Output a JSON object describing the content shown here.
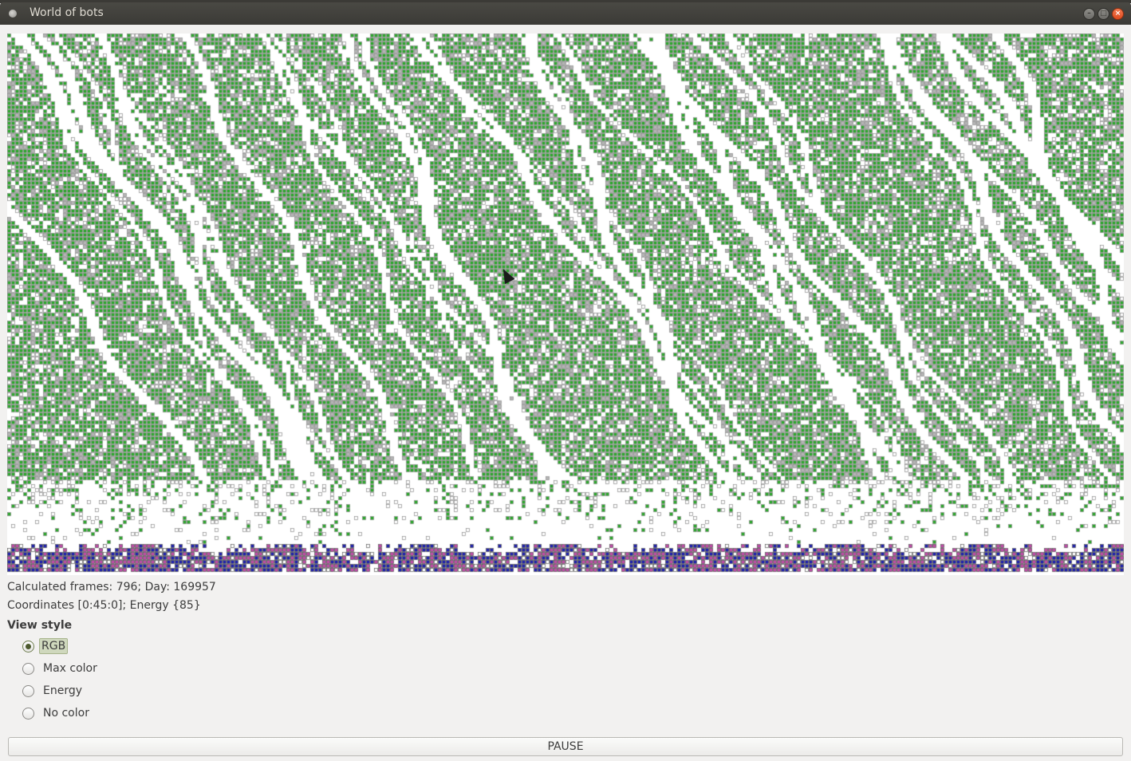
{
  "window": {
    "title": "World of bots",
    "buttons": {
      "minimize_icon": "minimize-icon",
      "maximize_icon": "maximize-icon",
      "close_icon": "close-icon"
    }
  },
  "world": {
    "colors": {
      "background": "#ffffff",
      "plant_green": "#2aa82a",
      "bot_gray": "#9a9a9a",
      "mineral_blue": "#1f20b0",
      "mineral_pink": "#c04aa8"
    }
  },
  "status": {
    "frames_text": "Calculated frames: 796; Day: 169957",
    "coords_text": "Coordinates [0:45:0]; Energy {85}"
  },
  "view_style": {
    "title": "View style",
    "selected": "RGB",
    "options": [
      {
        "label": "RGB",
        "checked": true
      },
      {
        "label": "Max color",
        "checked": false
      },
      {
        "label": "Energy",
        "checked": false
      },
      {
        "label": "No color",
        "checked": false
      }
    ]
  },
  "controls": {
    "pause_label": "PAUSE"
  }
}
